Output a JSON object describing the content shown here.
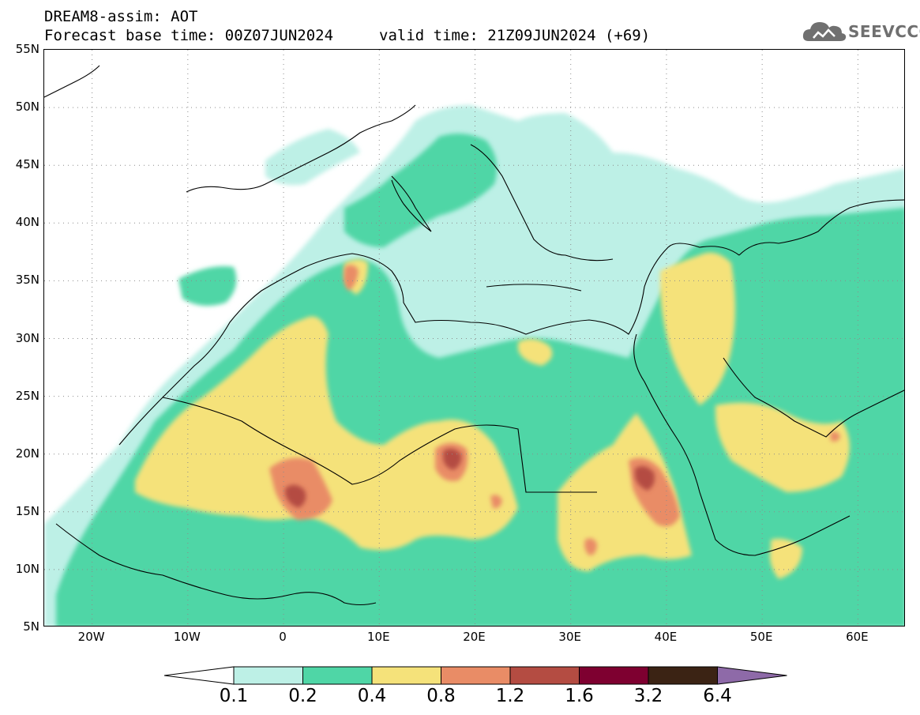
{
  "header": {
    "title": "DREAM8-assim: AOT",
    "base_time": "Forecast base time: 00Z07JUN2024",
    "valid_time": "valid time: 21Z09JUN2024 (+69)"
  },
  "logo": {
    "text": "SEEVCCC",
    "icon": "cloud-icon"
  },
  "map": {
    "projection": "latlon",
    "lon_range": [
      -25,
      65
    ],
    "lat_range": [
      5,
      55
    ],
    "lat_ticks": [
      {
        "value": 55,
        "label": "55N"
      },
      {
        "value": 50,
        "label": "50N"
      },
      {
        "value": 45,
        "label": "45N"
      },
      {
        "value": 40,
        "label": "40N"
      },
      {
        "value": 35,
        "label": "35N"
      },
      {
        "value": 30,
        "label": "30N"
      },
      {
        "value": 25,
        "label": "25N"
      },
      {
        "value": 20,
        "label": "20N"
      },
      {
        "value": 15,
        "label": "15N"
      },
      {
        "value": 10,
        "label": "10N"
      },
      {
        "value": 5,
        "label": "5N"
      }
    ],
    "lon_ticks": [
      {
        "value": -20,
        "label": "20W"
      },
      {
        "value": -10,
        "label": "10W"
      },
      {
        "value": 0,
        "label": "0"
      },
      {
        "value": 10,
        "label": "10E"
      },
      {
        "value": 20,
        "label": "20E"
      },
      {
        "value": 30,
        "label": "30E"
      },
      {
        "value": 40,
        "label": "40E"
      },
      {
        "value": 50,
        "label": "50E"
      },
      {
        "value": 60,
        "label": "60E"
      }
    ],
    "grid": "dotted",
    "colors": {
      "c01": "#bdf0e6",
      "c02": "#4fd6a6",
      "c04": "#f5e27a",
      "c08": "#e98c66",
      "c12": "#b44c42",
      "c16": "#7e0030",
      "c32": "#3b2314",
      "c64": "#8e6aa8",
      "coast": "#000000"
    }
  },
  "colorbar": {
    "labels": [
      "0.1",
      "0.2",
      "0.4",
      "0.8",
      "1.2",
      "1.6",
      "3.2",
      "6.4"
    ],
    "colors": [
      "#bdf0e6",
      "#4fd6a6",
      "#f5e27a",
      "#e98c66",
      "#b44c42",
      "#7e0030",
      "#3b2314"
    ],
    "below_color": "#ffffff",
    "above_color": "#8e6aa8"
  }
}
